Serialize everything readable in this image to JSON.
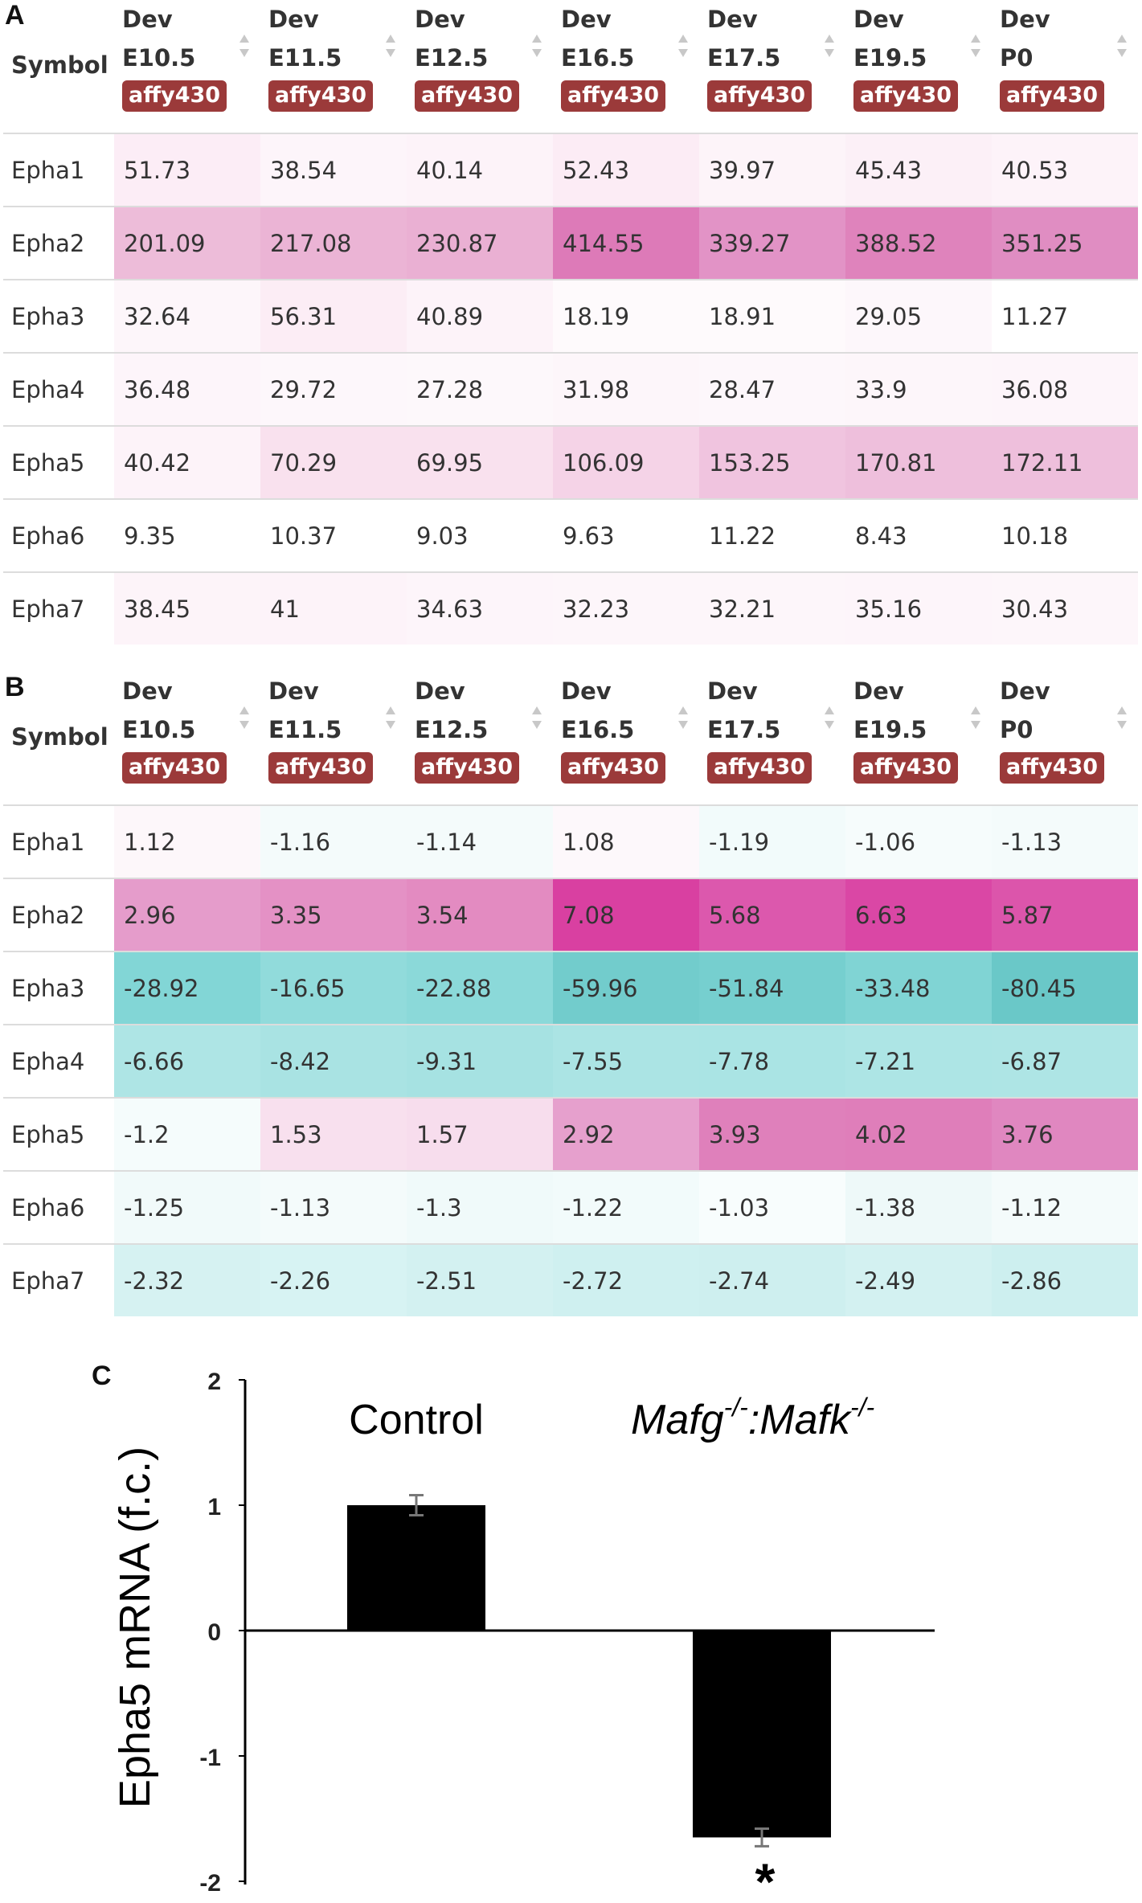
{
  "panels": {
    "a": "A",
    "b": "B",
    "c": "C"
  },
  "table_a": {
    "symbol_header": "Symbol",
    "columns": [
      {
        "line1": "Dev",
        "line2": "E10.5",
        "badge": "affy430"
      },
      {
        "line1": "Dev",
        "line2": "E11.5",
        "badge": "affy430"
      },
      {
        "line1": "Dev",
        "line2": "E12.5",
        "badge": "affy430"
      },
      {
        "line1": "Dev",
        "line2": "E16.5",
        "badge": "affy430"
      },
      {
        "line1": "Dev",
        "line2": "E17.5",
        "badge": "affy430"
      },
      {
        "line1": "Dev",
        "line2": "E19.5",
        "badge": "affy430"
      },
      {
        "line1": "Dev",
        "line2": "P0",
        "badge": "affy430"
      }
    ],
    "rows": [
      {
        "symbol": "Epha1",
        "values": [
          "51.73",
          "38.54",
          "40.14",
          "52.43",
          "39.97",
          "45.43",
          "40.53"
        ],
        "colors": [
          "#fcedf6",
          "#fdf5fa",
          "#fdf3f9",
          "#fcecf5",
          "#fdf4f9",
          "#fcf0f7",
          "#fdf3f9"
        ]
      },
      {
        "symbol": "Epha2",
        "values": [
          "201.09",
          "217.08",
          "230.87",
          "414.55",
          "339.27",
          "388.52",
          "351.25"
        ],
        "colors": [
          "#edbcd9",
          "#ebb4d5",
          "#eab0d3",
          "#dd7ab8",
          "#e293c6",
          "#df83bc",
          "#e08dc2"
        ]
      },
      {
        "symbol": "Epha3",
        "values": [
          "32.64",
          "56.31",
          "40.89",
          "18.19",
          "18.91",
          "29.05",
          "11.27"
        ],
        "colors": [
          "#fdf6fa",
          "#fcedf5",
          "#fdf3f9",
          "#fefafc",
          "#fefafc",
          "#fdf7fb",
          "#ffffff"
        ]
      },
      {
        "symbol": "Epha4",
        "values": [
          "36.48",
          "29.72",
          "27.28",
          "31.98",
          "28.47",
          "33.9",
          "36.08"
        ],
        "colors": [
          "#fdf5fa",
          "#fdf7fb",
          "#fdf8fb",
          "#fdf6fa",
          "#fdf7fb",
          "#fdf6fa",
          "#fdf5fa"
        ]
      },
      {
        "symbol": "Epha5",
        "values": [
          "40.42",
          "70.29",
          "69.95",
          "106.09",
          "153.25",
          "170.81",
          "172.11"
        ],
        "colors": [
          "#fdf3f9",
          "#f9e1ee",
          "#f9e1ee",
          "#f5d3e7",
          "#f0c4df",
          "#eebfdc",
          "#eebfdc"
        ]
      },
      {
        "symbol": "Epha6",
        "values": [
          "9.35",
          "10.37",
          "9.03",
          "9.63",
          "11.22",
          "8.43",
          "10.18"
        ],
        "colors": [
          "#ffffff",
          "#ffffff",
          "#ffffff",
          "#ffffff",
          "#ffffff",
          "#ffffff",
          "#ffffff"
        ]
      },
      {
        "symbol": "Epha7",
        "values": [
          "38.45",
          "41",
          "34.63",
          "32.23",
          "32.21",
          "35.16",
          "30.43"
        ],
        "colors": [
          "#fdf4f9",
          "#fdf3f9",
          "#fdf5fa",
          "#fdf6fa",
          "#fdf6fa",
          "#fdf5fa",
          "#fdf6fa"
        ]
      }
    ]
  },
  "table_b": {
    "symbol_header": "Symbol",
    "columns": [
      {
        "line1": "Dev",
        "line2": "E10.5",
        "badge": "affy430"
      },
      {
        "line1": "Dev",
        "line2": "E11.5",
        "badge": "affy430"
      },
      {
        "line1": "Dev",
        "line2": "E12.5",
        "badge": "affy430"
      },
      {
        "line1": "Dev",
        "line2": "E16.5",
        "badge": "affy430"
      },
      {
        "line1": "Dev",
        "line2": "E17.5",
        "badge": "affy430"
      },
      {
        "line1": "Dev",
        "line2": "E19.5",
        "badge": "affy430"
      },
      {
        "line1": "Dev",
        "line2": "P0",
        "badge": "affy430"
      }
    ],
    "rows": [
      {
        "symbol": "Epha1",
        "values": [
          "1.12",
          "-1.16",
          "-1.14",
          "1.08",
          "-1.19",
          "-1.06",
          "-1.13"
        ],
        "colors": [
          "#fdf7fa",
          "#f4fbfb",
          "#f4fbfb",
          "#fdf8fb",
          "#f2fbfb",
          "#f6fcfc",
          "#f4fbfb"
        ]
      },
      {
        "symbol": "Epha2",
        "values": [
          "2.96",
          "3.35",
          "3.54",
          "7.08",
          "5.68",
          "6.63",
          "5.87"
        ],
        "colors": [
          "#e59ccb",
          "#e491c5",
          "#e38bc1",
          "#d940a1",
          "#dc58ad",
          "#da47a5",
          "#dc55ab"
        ]
      },
      {
        "symbol": "Epha3",
        "values": [
          "-28.92",
          "-16.65",
          "-22.88",
          "-59.96",
          "-51.84",
          "-33.48",
          "-80.45"
        ],
        "colors": [
          "#82d6d6",
          "#91dbdb",
          "#8bd9d9",
          "#72cccc",
          "#76cfcf",
          "#80d4d4",
          "#6ac8c8"
        ]
      },
      {
        "symbol": "Epha4",
        "values": [
          "-6.66",
          "-8.42",
          "-9.31",
          "-7.55",
          "-7.78",
          "-7.21",
          "-6.87"
        ],
        "colors": [
          "#aee5e5",
          "#a9e3e3",
          "#a6e2e2",
          "#abe4e4",
          "#aae4e4",
          "#ade5e5",
          "#aee5e5"
        ]
      },
      {
        "symbol": "Epha5",
        "values": [
          "-1.2",
          "1.53",
          "1.57",
          "2.92",
          "3.93",
          "4.02",
          "3.76"
        ],
        "colors": [
          "#f5fcfc",
          "#f8e0ee",
          "#f7dded",
          "#e6a0cd",
          "#df80bb",
          "#df7eba",
          "#e087c0"
        ]
      },
      {
        "symbol": "Epha6",
        "values": [
          "-1.25",
          "-1.13",
          "-1.3",
          "-1.22",
          "-1.03",
          "-1.38",
          "-1.12"
        ],
        "colors": [
          "#f1fafa",
          "#f4fbfb",
          "#f0fafa",
          "#f2fbfb",
          "#f8fdfd",
          "#eef9f9",
          "#f4fbfb"
        ]
      },
      {
        "symbol": "Epha7",
        "values": [
          "-2.32",
          "-2.26",
          "-2.51",
          "-2.72",
          "-2.74",
          "-2.49",
          "-2.86"
        ],
        "colors": [
          "#d6f2f2",
          "#d7f3f3",
          "#d3f1f1",
          "#cff0f0",
          "#ceefef",
          "#d3f1f1",
          "#cdefef"
        ]
      }
    ]
  },
  "chart_data": {
    "type": "bar",
    "categories": [
      "Control",
      "Mafg-/-:Mafk-/-"
    ],
    "category_display": {
      "control": "Control",
      "mutant_g": "Mafg",
      "mutant_g_sup": "-/-",
      "mutant_sep": ":",
      "mutant_k": "Mafk",
      "mutant_k_sup": "-/-"
    },
    "values": [
      1.0,
      -1.65
    ],
    "errors": [
      0.08,
      0.07
    ],
    "significance": [
      "",
      "*"
    ],
    "ylabel": "Epha5 mRNA (f.c.)",
    "xlabel": "",
    "ylim": [
      -2,
      2
    ],
    "yticks": [
      "2",
      "1",
      "0",
      "-1",
      "-2"
    ],
    "ytick_values": [
      2,
      1,
      0,
      -1,
      -2
    ],
    "bar_color": "#000000"
  }
}
